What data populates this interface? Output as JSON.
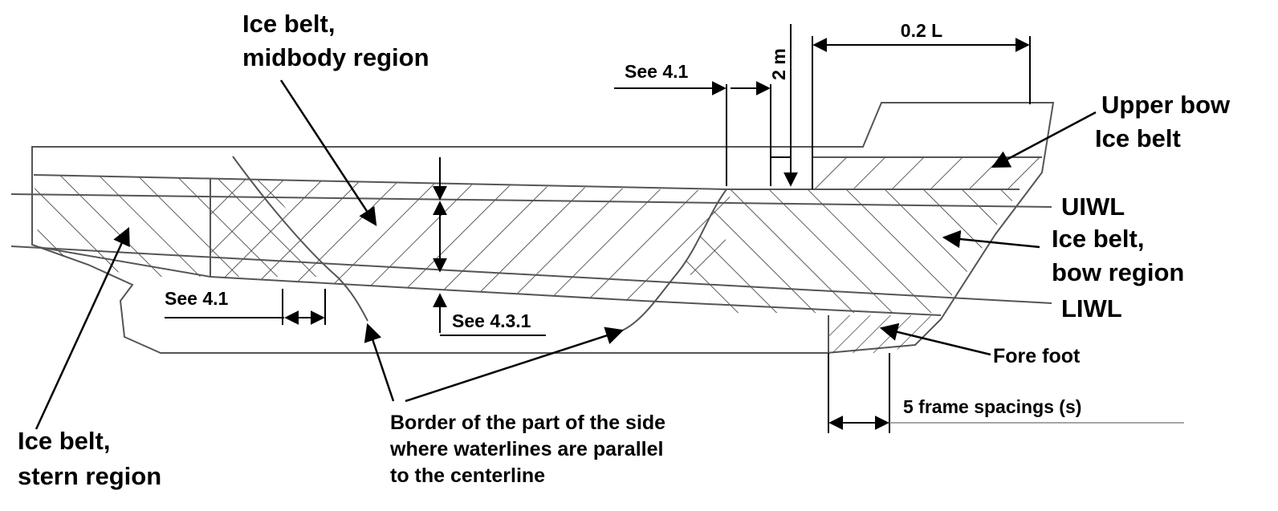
{
  "labels": {
    "ice_belt_midbody": [
      "Ice belt,",
      "midbody region"
    ],
    "ice_belt_stern": [
      "Ice belt,",
      "stern region"
    ],
    "upper_bow_ice_belt": [
      "Upper bow",
      "Ice belt"
    ],
    "ice_belt_bow": [
      "Ice belt,",
      "bow region"
    ],
    "uiwl": "UIWL",
    "liwl": "LIWL",
    "fore_foot": "Fore foot",
    "see_4_1_top": "See 4.1",
    "see_4_1_bottom": "See 4.1",
    "see_4_3_1": "See 4.3.1",
    "two_m": "2 m",
    "point_two_l": "0.2 L",
    "five_frame_spacings": "5 frame spacings (s)",
    "border_note": [
      "Border of the part of the side",
      "where waterlines are parallel",
      "to the centerline"
    ]
  }
}
